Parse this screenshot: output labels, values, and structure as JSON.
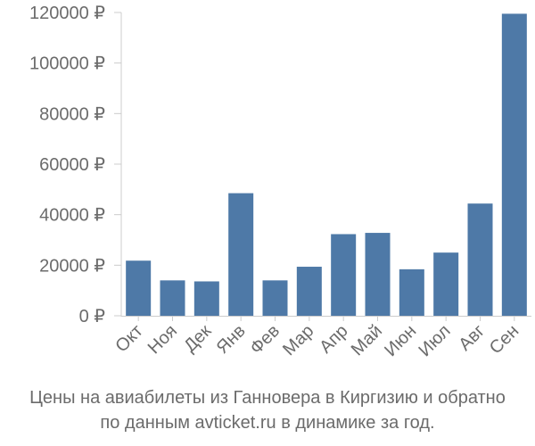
{
  "caption": {
    "line1": "Цены на авиабилеты из Ганновера в Киргизию и обратно",
    "line2": "по данным avticket.ru в динамике за год."
  },
  "colors": {
    "bar": "#4e79a7",
    "axis": "#cccccc",
    "text": "#6b6b6b"
  },
  "chart_data": {
    "type": "bar",
    "categories": [
      "Окт",
      "Ноя",
      "Дек",
      "Янв",
      "Фев",
      "Мар",
      "Апр",
      "Май",
      "Июн",
      "Июл",
      "Авг",
      "Сен"
    ],
    "values": [
      21800,
      14000,
      13600,
      48500,
      14000,
      19400,
      32300,
      32800,
      18400,
      25000,
      44400,
      119500
    ],
    "ylim": [
      0,
      120000
    ],
    "yticks": [
      0,
      20000,
      40000,
      60000,
      80000,
      100000,
      120000
    ],
    "ytick_labels": [
      "0 ₽",
      "20000 ₽",
      "40000 ₽",
      "60000 ₽",
      "80000 ₽",
      "100000 ₽",
      "120000 ₽"
    ],
    "grid": false,
    "xlabel": "",
    "ylabel": ""
  }
}
